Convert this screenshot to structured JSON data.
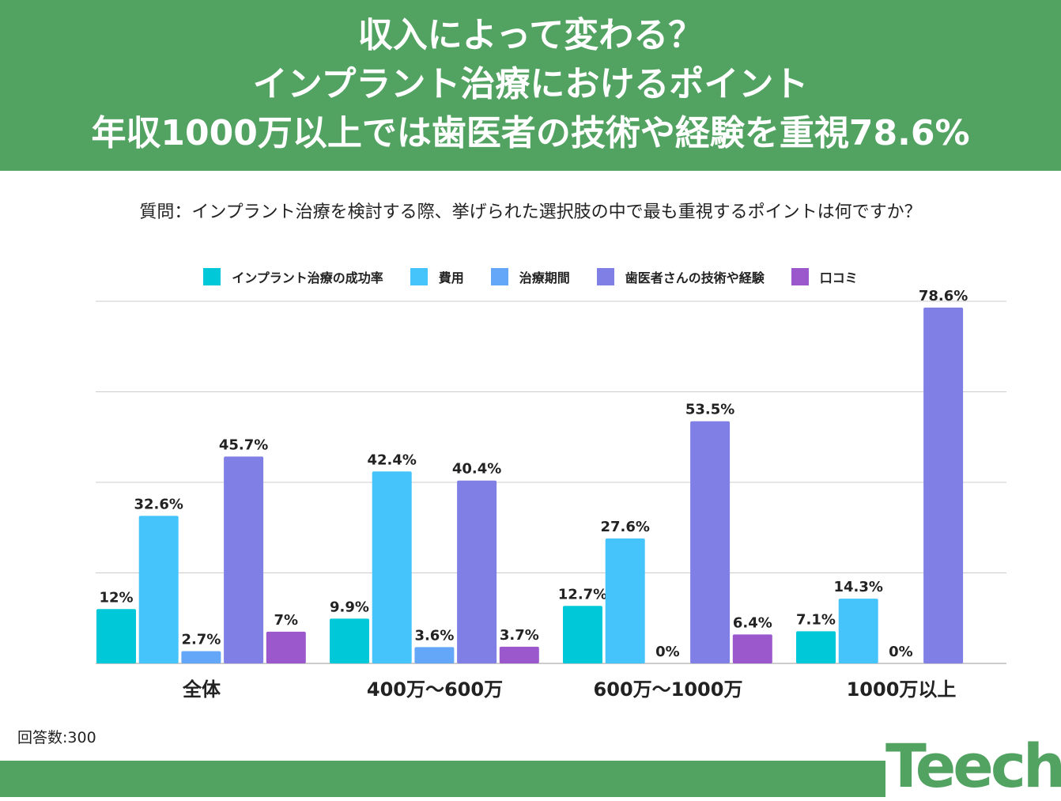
{
  "header": {
    "lines": [
      "収入によって変わる？",
      "インプラント治療におけるポイント",
      "年収1000万以上では歯医者の技術や経験を重視78.6%"
    ]
  },
  "question": "質問：インプラント治療を検討する際、挙げられた選択肢の中で最も重視するポイントは何ですか？",
  "note": "回答数:300",
  "logo": "Teech",
  "chart_data": {
    "type": "bar",
    "categories": [
      "全体",
      "400万〜600万",
      "600万〜1000万",
      "1000万以上"
    ],
    "series": [
      {
        "name": "インプラント治療の成功率",
        "color": "#00c8d8",
        "values": [
          12,
          9.9,
          12.7,
          7.1
        ],
        "labels": [
          "12%",
          "9.9%",
          "12.7%",
          "7.1%"
        ]
      },
      {
        "name": "費用",
        "color": "#45c4fc",
        "values": [
          32.6,
          42.4,
          27.6,
          14.3
        ],
        "labels": [
          "32.6%",
          "42.4%",
          "27.6%",
          "14.3%"
        ]
      },
      {
        "name": "治療期間",
        "color": "#64a6f8",
        "values": [
          2.7,
          3.6,
          0,
          0
        ],
        "labels": [
          "2.7%",
          "3.6%",
          "0%",
          "0%"
        ]
      },
      {
        "name": "歯医者さんの技術や経験",
        "color": "#7f7fe6",
        "values": [
          45.7,
          40.4,
          53.5,
          78.6
        ],
        "labels": [
          "45.7%",
          "40.4%",
          "53.5%",
          "78.6%"
        ]
      },
      {
        "name": "口コミ",
        "color": "#9a58cc",
        "values": [
          7,
          3.7,
          6.4,
          null
        ],
        "labels": [
          "7%",
          "3.7%",
          "6.4%",
          null
        ]
      }
    ],
    "ylim": [
      0,
      80
    ],
    "grid": true,
    "legend": "top"
  }
}
